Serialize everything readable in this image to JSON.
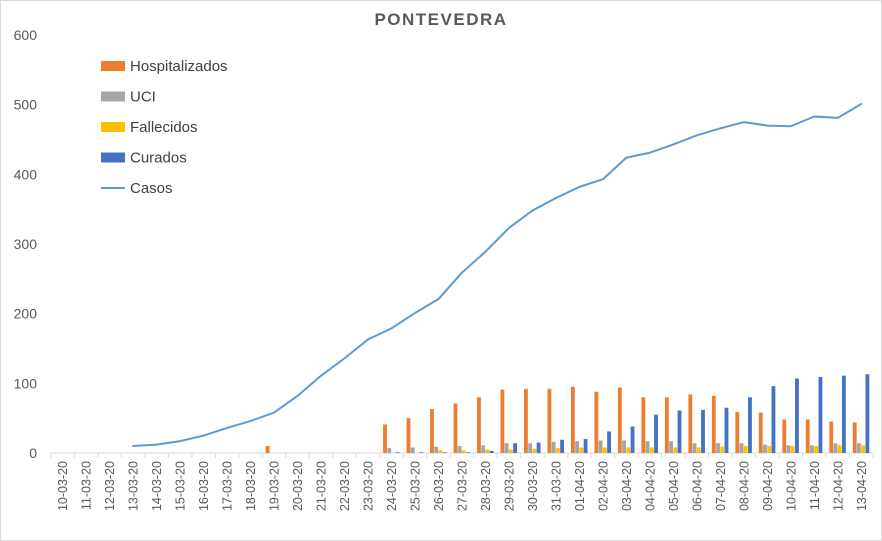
{
  "chart_data": {
    "type": "bar",
    "title": "PONTEVEDRA",
    "xlabel": "",
    "ylabel": "",
    "ylim": [
      0,
      600
    ],
    "yticks": [
      0,
      100,
      200,
      300,
      400,
      500,
      600
    ],
    "grid": false,
    "legend_position": "top-left",
    "categories": [
      "10-03-20",
      "11-03-20",
      "12-03-20",
      "13-03-20",
      "14-03-20",
      "15-03-20",
      "16-03-20",
      "17-03-20",
      "18-03-20",
      "19-03-20",
      "20-03-20",
      "21-03-20",
      "22-03-20",
      "23-03-20",
      "24-03-20",
      "25-03-20",
      "26-03-20",
      "27-03-20",
      "28-03-20",
      "29-03-20",
      "30-03-20",
      "31-03-20",
      "01-04-20",
      "02-04-20",
      "03-04-20",
      "04-04-20",
      "05-04-20",
      "06-04-20",
      "07-04-20",
      "08-04-20",
      "09-04-20",
      "10-04-20",
      "11-04-20",
      "12-04-20",
      "13-04-20"
    ],
    "series": [
      {
        "name": "Hospitalizados",
        "type": "bar",
        "color": "#ED7D31",
        "values": [
          null,
          null,
          null,
          null,
          null,
          null,
          null,
          null,
          null,
          10,
          null,
          null,
          null,
          null,
          41,
          50,
          63,
          71,
          80,
          91,
          92,
          92,
          95,
          88,
          94,
          80,
          80,
          84,
          82,
          59,
          58,
          48,
          48,
          45,
          44
        ]
      },
      {
        "name": "UCI",
        "type": "bar",
        "color": "#A5A5A5",
        "values": [
          null,
          null,
          null,
          null,
          null,
          null,
          null,
          null,
          null,
          null,
          null,
          null,
          null,
          null,
          7,
          8,
          9,
          10,
          11,
          14,
          14,
          16,
          17,
          18,
          18,
          17,
          17,
          14,
          14,
          14,
          12,
          11,
          11,
          14,
          14
        ]
      },
      {
        "name": "Fallecidos",
        "type": "bar",
        "color": "#FFC000",
        "values": [
          null,
          null,
          null,
          null,
          null,
          null,
          null,
          null,
          null,
          null,
          null,
          null,
          null,
          null,
          null,
          null,
          4,
          4,
          5,
          5,
          6,
          7,
          8,
          8,
          8,
          8,
          8,
          8,
          9,
          10,
          10,
          10,
          10,
          11,
          11
        ]
      },
      {
        "name": "Curados",
        "type": "bar",
        "color": "#4472C4",
        "values": [
          null,
          null,
          null,
          null,
          null,
          null,
          null,
          null,
          null,
          null,
          null,
          null,
          null,
          null,
          1,
          1,
          1,
          1,
          3,
          14,
          15,
          19,
          20,
          31,
          38,
          55,
          61,
          62,
          65,
          80,
          96,
          107,
          109,
          111,
          113
        ]
      },
      {
        "name": "Casos",
        "type": "line",
        "color": "#5B9BD5",
        "values": [
          null,
          null,
          null,
          10,
          12,
          17,
          25,
          36,
          46,
          58,
          82,
          111,
          136,
          163,
          179,
          201,
          221,
          259,
          289,
          323,
          348,
          366,
          382,
          393,
          424,
          431,
          443,
          456,
          466,
          475,
          470,
          469,
          483,
          481,
          501
        ]
      }
    ]
  }
}
